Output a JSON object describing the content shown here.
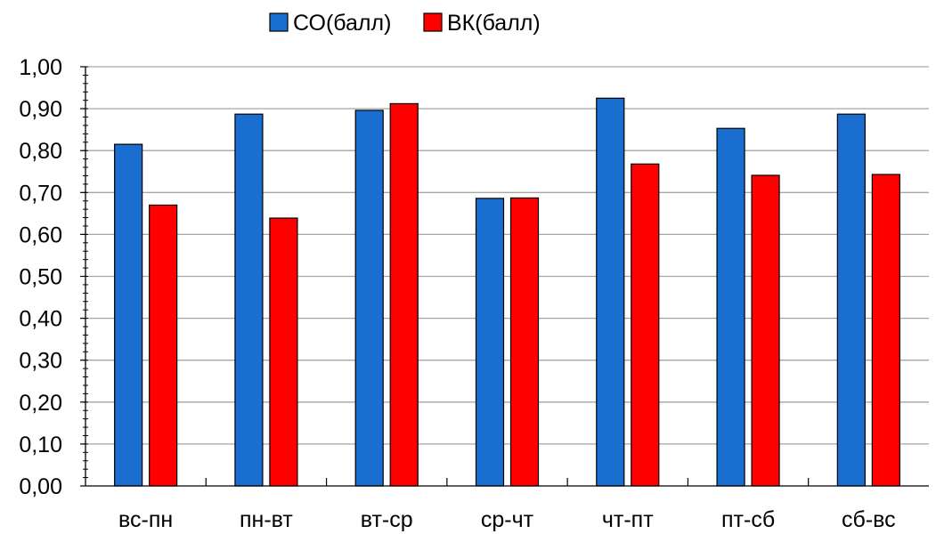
{
  "chart_data": {
    "type": "bar",
    "categories": [
      "вс-пн",
      "пн-вт",
      "вт-ср",
      "ср-чт",
      "чт-пт",
      "пт-сб",
      "сб-вс"
    ],
    "series": [
      {
        "name": "СО(балл)",
        "color": "#1a6ecf",
        "values": [
          0.815,
          0.887,
          0.896,
          0.686,
          0.925,
          0.853,
          0.887
        ]
      },
      {
        "name": "ВК(балл)",
        "color": "#ff0000",
        "values": [
          0.67,
          0.639,
          0.912,
          0.687,
          0.768,
          0.741,
          0.743
        ]
      }
    ],
    "ylim": [
      0,
      1
    ],
    "y_major_step": 0.1,
    "y_minor_step": 0.02,
    "y_tick_labels": [
      "0,00",
      "0,10",
      "0,20",
      "0,30",
      "0,40",
      "0,50",
      "0,60",
      "0,70",
      "0,80",
      "0,90",
      "1,00"
    ],
    "grid": true,
    "legend_position": "top"
  }
}
